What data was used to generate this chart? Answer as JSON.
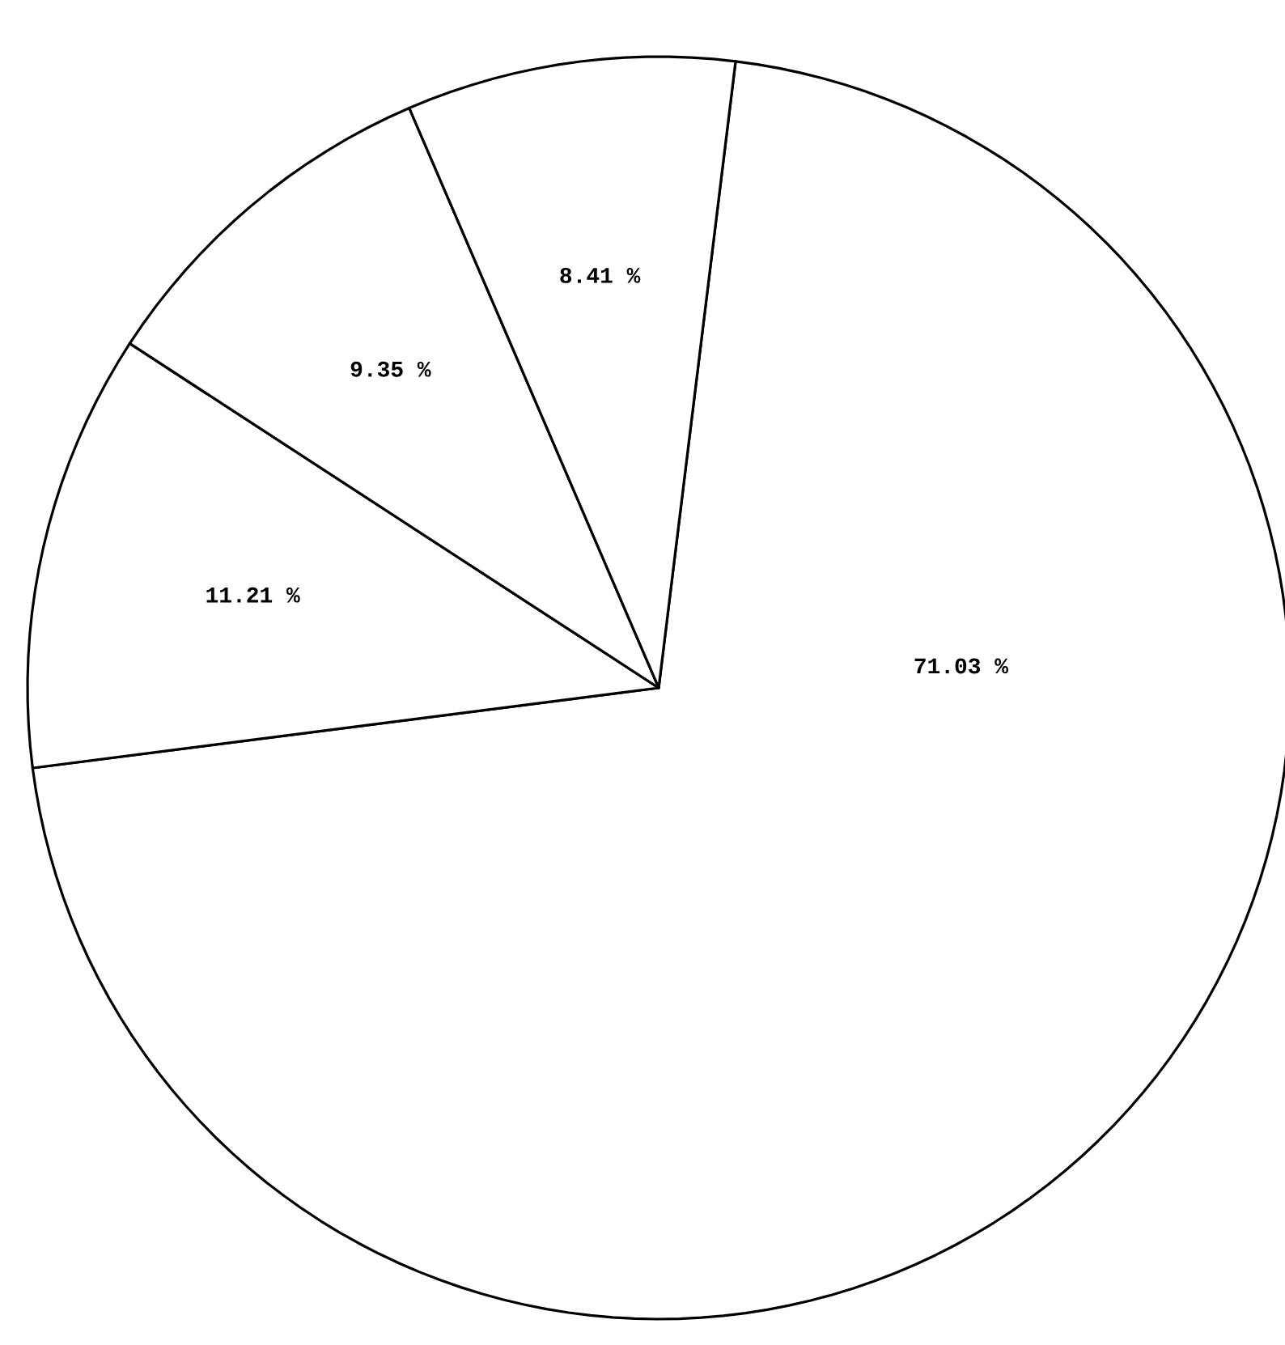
{
  "chart_data": {
    "type": "pie",
    "categories": [
      null,
      null,
      null,
      null
    ],
    "values": [
      71.03,
      11.21,
      9.35,
      8.41
    ],
    "value_labels": [
      "71.03 %",
      "11.21 %",
      "9.35 %",
      "8.41 %"
    ],
    "colors": [
      "#ffffff",
      "#ffffff",
      "#ffffff",
      "#ffffff"
    ]
  }
}
